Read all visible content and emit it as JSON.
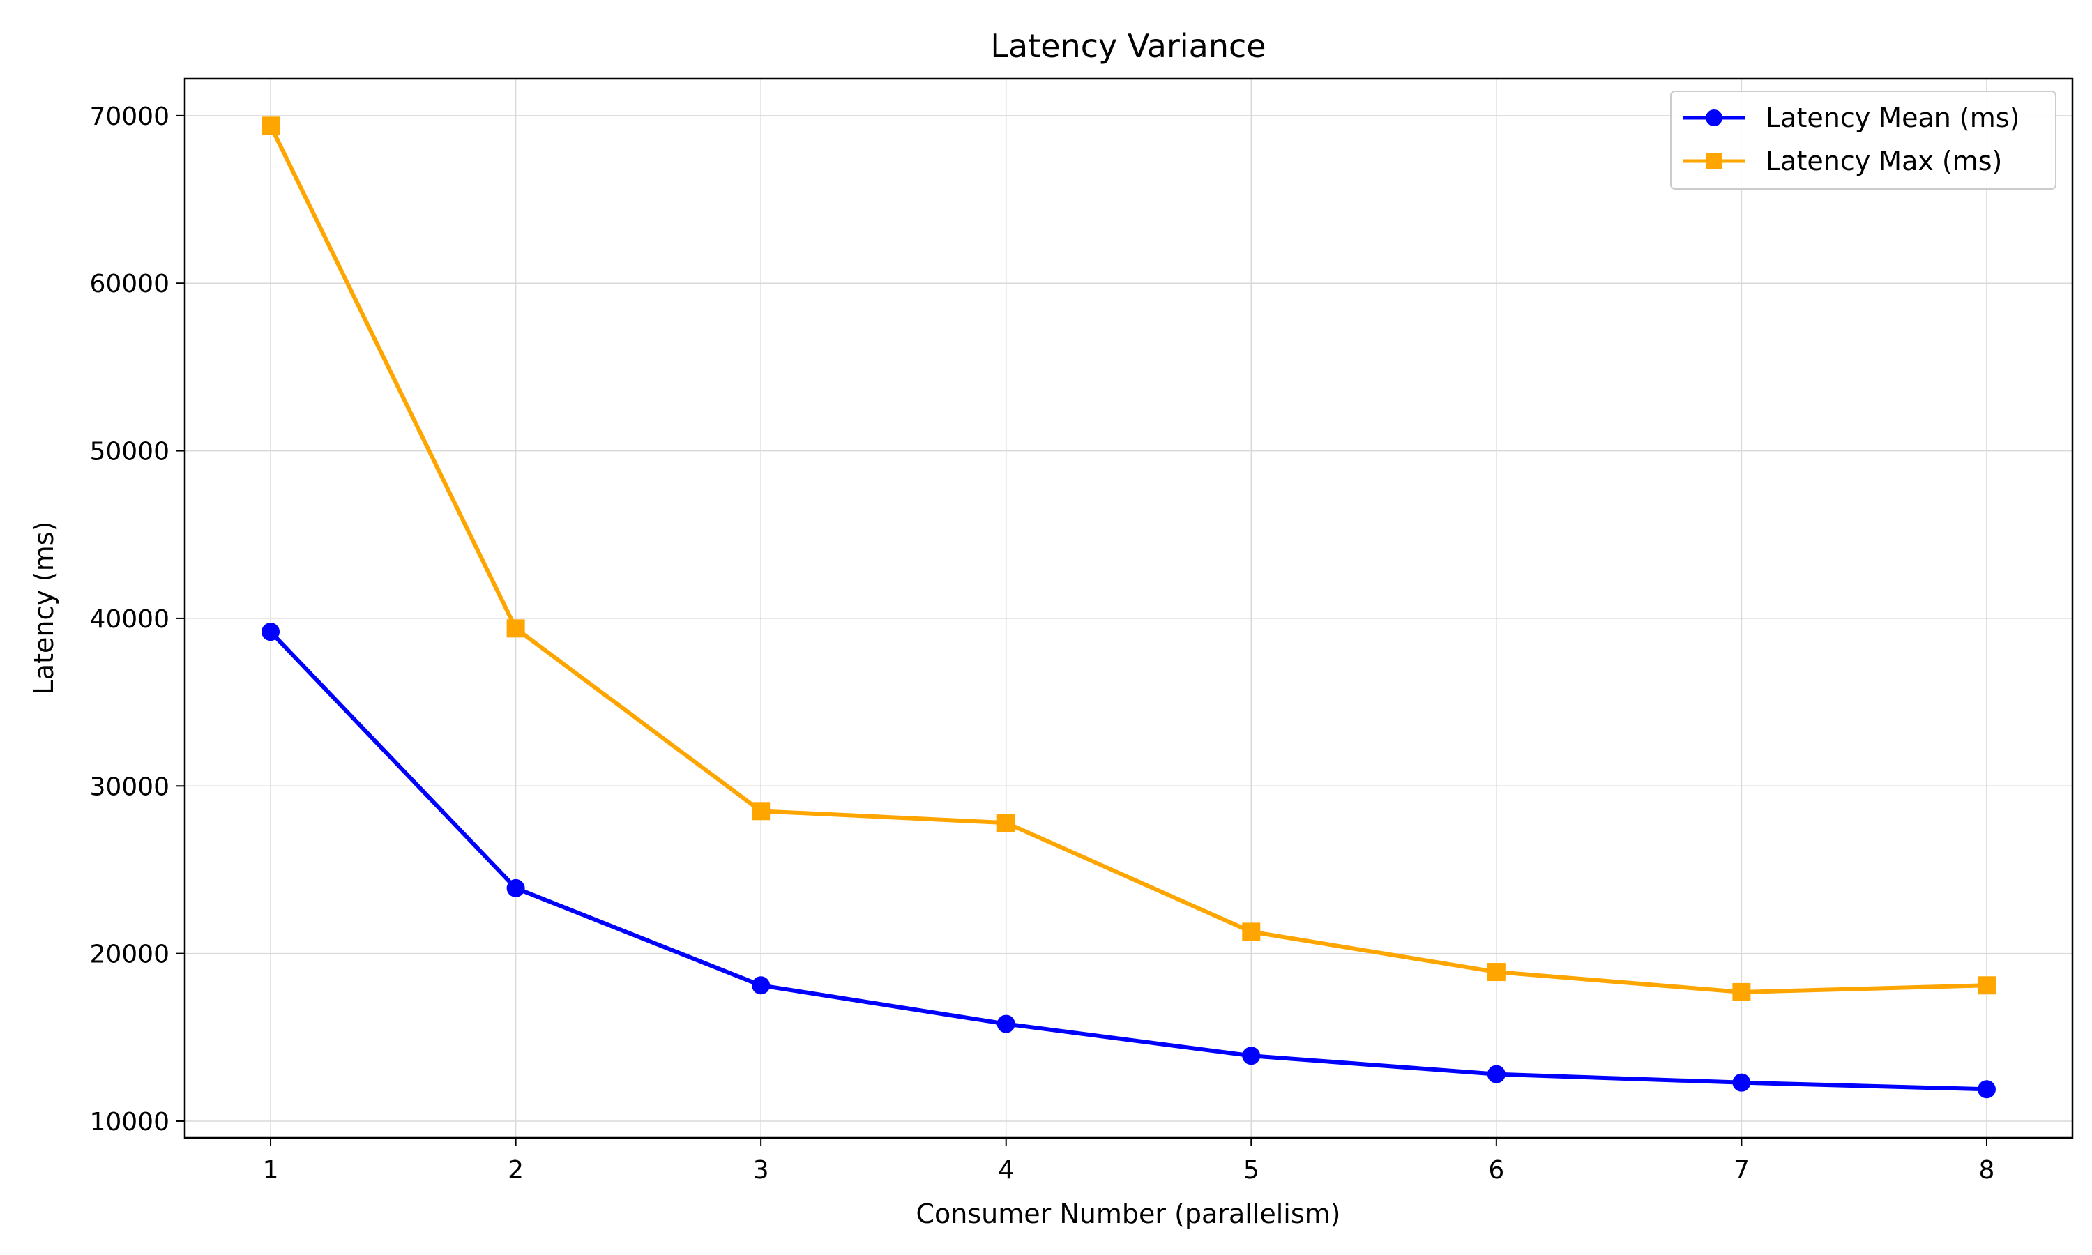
{
  "chart_data": {
    "type": "line",
    "title": "Latency Variance",
    "xlabel": "Consumer Number (parallelism)",
    "ylabel": "Latency (ms)",
    "x": [
      1,
      2,
      3,
      4,
      5,
      6,
      7,
      8
    ],
    "x_ticks": [
      "1",
      "2",
      "3",
      "4",
      "5",
      "6",
      "7",
      "8"
    ],
    "y_ticks": [
      10000,
      20000,
      30000,
      40000,
      50000,
      60000,
      70000
    ],
    "y_tick_labels": [
      "10000",
      "20000",
      "30000",
      "40000",
      "50000",
      "60000",
      "70000"
    ],
    "xlim": [
      0.65,
      8.35
    ],
    "ylim": [
      9000,
      72200
    ],
    "grid": true,
    "legend_position": "top-right",
    "series": [
      {
        "name": "Latency Mean (ms)",
        "color": "#0000ff",
        "marker": "circle",
        "values": [
          39200,
          23900,
          18100,
          15800,
          13900,
          12800,
          12300,
          11900
        ]
      },
      {
        "name": "Latency Max (ms)",
        "color": "#ffa500",
        "marker": "square",
        "values": [
          69400,
          39400,
          28500,
          27800,
          21300,
          18900,
          17700,
          18100
        ]
      }
    ]
  }
}
